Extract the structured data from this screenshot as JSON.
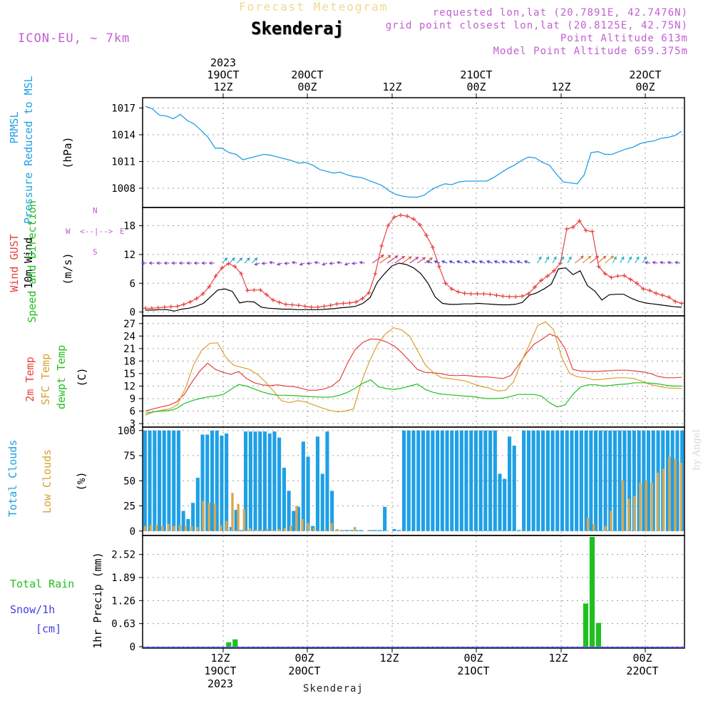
{
  "header": {
    "top_title": "Forecast Meteogram",
    "location": "Skenderaj",
    "model": "ICON-EU, ~ 7km",
    "requested": "requested lon,lat (20.7891E, 42.7476N)",
    "gridpoint": "grid point closest lon,lat (20.8125E, 42.75N)",
    "point_alt": "Point Altitude 613m",
    "model_alt": "Model Point Altitude 659.375m",
    "credit": "by Angel",
    "footer": "Skenderaj"
  },
  "colors": {
    "pressure": "#1ea0e6",
    "gust": "#e84040",
    "wind": "#000000",
    "t2m": "#e84040",
    "sfc": "#d8a030",
    "dew": "#20c020",
    "total_clouds": "#1ea0e6",
    "low_clouds": "#d8a850",
    "rain": "#20c020",
    "snow": "#4040e0",
    "purple": "#c060d0"
  },
  "top_axis": [
    {
      "lines": [
        "2023",
        "19OCT",
        "12Z"
      ]
    },
    {
      "lines": [
        "20OCT",
        "00Z"
      ]
    },
    {
      "lines": [
        "12Z"
      ]
    },
    {
      "lines": [
        "21OCT",
        "00Z"
      ]
    },
    {
      "lines": [
        "12Z"
      ]
    },
    {
      "lines": [
        "22OCT",
        "00Z"
      ]
    }
  ],
  "bottom_axis": [
    {
      "lines": [
        "12Z",
        "19OCT",
        "2023"
      ]
    },
    {
      "lines": [
        "00Z",
        "20OCT"
      ]
    },
    {
      "lines": [
        "12Z"
      ]
    },
    {
      "lines": [
        "00Z",
        "21OCT"
      ]
    },
    {
      "lines": [
        "12Z"
      ]
    },
    {
      "lines": [
        "00Z",
        "22OCT"
      ]
    }
  ],
  "labels": {
    "prmsl": "PRMSL",
    "prmsl2": "Pressure Reduced to MSL",
    "hpa": "(hPa)",
    "gust": "Wind GUST",
    "wind10": "10m Wind",
    "winddir": "Speed and Direction",
    "ms": "(m/s)",
    "compass": "N\n<-|->",
    "t2m": "2m Temp",
    "sfc": "SFC Temp",
    "dew": "dewpt Temp",
    "degc": "(C)",
    "tcc": "Total Clouds",
    "lcc": "Low Clouds",
    "pct": "(%)",
    "rain": "Total  Rain",
    "snow": "Snow/1h",
    "cm": "[cm]",
    "precip": "1hr Precip (mm)",
    "compass_n": "N",
    "compass_s": "S",
    "compass_w": "W",
    "compass_e": "E"
  },
  "chart_data": [
    {
      "type": "line",
      "name": "pressure",
      "ylim": [
        1006,
        1018
      ],
      "yticks": [
        1008,
        1011,
        1014,
        1017
      ],
      "tick_labels": [
        "1008",
        "1011",
        "1014",
        "1017"
      ],
      "series": [
        {
          "name": "PRMSL",
          "values": [
            1017.2,
            1016.9,
            1016.2,
            1016.1,
            1015.8,
            1016.3,
            1015.6,
            1015.2,
            1014.5,
            1013.7,
            1012.5,
            1012.5,
            1012.0,
            1011.8,
            1011.2,
            1011.4,
            1011.6,
            1011.8,
            1011.7,
            1011.5,
            1011.3,
            1011.1,
            1010.8,
            1010.9,
            1010.6,
            1010.1,
            1009.9,
            1009.7,
            1009.8,
            1009.5,
            1009.3,
            1009.2,
            1008.9,
            1008.6,
            1008.3,
            1007.7,
            1007.3,
            1007.1,
            1007.0,
            1007.0,
            1007.2,
            1007.8,
            1008.2,
            1008.5,
            1008.4,
            1008.7,
            1008.8,
            1008.8,
            1008.8,
            1008.8,
            1009.2,
            1009.7,
            1010.2,
            1010.6,
            1011.1,
            1011.5,
            1011.4,
            1010.9,
            1010.6,
            1009.6,
            1008.7,
            1008.6,
            1008.5,
            1009.5,
            1012.0,
            1012.1,
            1011.8,
            1011.8,
            1012.1,
            1012.4,
            1012.6,
            1013.0,
            1013.2,
            1013.3,
            1013.6,
            1013.7,
            1013.9,
            1014.4
          ]
        }
      ]
    },
    {
      "type": "line",
      "name": "wind",
      "ylim": [
        -0.5,
        21.5
      ],
      "yticks": [
        0,
        6,
        12,
        18
      ],
      "tick_labels": [
        "0",
        "6",
        "12",
        "18"
      ],
      "series": [
        {
          "name": "Wind GUST",
          "values": [
            0.8,
            0.8,
            0.9,
            1.0,
            1.1,
            1.2,
            1.6,
            2.1,
            2.8,
            3.8,
            5.3,
            7.5,
            9.2,
            10.1,
            9.5,
            8.0,
            4.5,
            4.6,
            4.6,
            3.6,
            2.5,
            2.0,
            1.6,
            1.5,
            1.4,
            1.2,
            1.0,
            1.0,
            1.2,
            1.4,
            1.7,
            1.8,
            1.9,
            2.1,
            2.8,
            4.0,
            8.0,
            13.8,
            18.0,
            19.8,
            20.2,
            20.0,
            19.4,
            18.2,
            16.0,
            13.5,
            9.5,
            6.0,
            4.8,
            4.2,
            3.9,
            3.8,
            3.8,
            3.8,
            3.7,
            3.5,
            3.3,
            3.2,
            3.2,
            3.3,
            3.8,
            5.2,
            6.6,
            7.5,
            8.6,
            10.2,
            17.3,
            17.7,
            19.0,
            17.0,
            16.8,
            9.5,
            8.0,
            7.2,
            7.5,
            7.6,
            6.8,
            6.0,
            4.8,
            4.5,
            3.9,
            3.5,
            3.1,
            2.2,
            1.8
          ]
        },
        {
          "name": "10m Wind",
          "values": [
            0.4,
            0.4,
            0.5,
            0.5,
            0.2,
            0.6,
            0.8,
            1.2,
            1.8,
            3.2,
            4.6,
            4.8,
            4.3,
            1.9,
            2.2,
            2.1,
            1.0,
            0.8,
            0.7,
            0.6,
            0.6,
            0.5,
            0.5,
            0.5,
            0.5,
            0.6,
            0.7,
            0.9,
            1.0,
            1.2,
            1.8,
            3.0,
            6.2,
            8.0,
            9.6,
            10.2,
            9.9,
            9.2,
            8.0,
            6.0,
            3.1,
            1.8,
            1.6,
            1.6,
            1.7,
            1.7,
            1.8,
            1.7,
            1.6,
            1.5,
            1.5,
            1.6,
            2.0,
            3.5,
            4.0,
            4.8,
            5.8,
            9.0,
            9.2,
            7.8,
            8.6,
            5.5,
            4.4,
            2.5,
            3.6,
            3.7,
            3.7,
            2.9,
            2.3,
            1.9,
            1.7,
            1.5,
            1.3,
            1.1,
            1.0
          ]
        }
      ]
    },
    {
      "type": "line",
      "name": "temperature",
      "ylim": [
        2.5,
        28.5
      ],
      "yticks": [
        3,
        6,
        9,
        12,
        15,
        18,
        21,
        24,
        27
      ],
      "tick_labels": [
        "3",
        "6",
        "9",
        "12",
        "15",
        "18",
        "21",
        "24",
        "27"
      ],
      "series": [
        {
          "name": "2m Temp",
          "values": [
            6.0,
            6.5,
            7.0,
            7.4,
            8.2,
            10.0,
            13.0,
            15.6,
            17.5,
            16.0,
            15.3,
            14.8,
            15.5,
            13.8,
            12.8,
            12.3,
            12.1,
            12.3,
            12.0,
            11.9,
            11.5,
            11.0,
            11.0,
            11.3,
            12.0,
            13.5,
            17.5,
            20.8,
            22.5,
            23.3,
            23.2,
            22.6,
            21.6,
            20.0,
            18.0,
            16.0,
            15.3,
            15.2,
            15.0,
            14.6,
            14.5,
            14.6,
            14.4,
            14.2,
            14.2,
            14.0,
            13.8,
            14.5,
            17.0,
            19.8,
            22.0,
            23.2,
            24.5,
            23.8,
            21.0,
            16.0,
            15.6,
            15.5,
            15.5,
            15.6,
            15.7,
            15.8,
            15.8,
            15.6,
            15.4,
            15.0,
            14.3,
            14.0,
            14.0,
            14.1
          ]
        },
        {
          "name": "SFC Temp",
          "values": [
            5.0,
            5.8,
            6.2,
            6.5,
            7.5,
            11.5,
            17.0,
            20.5,
            22.2,
            22.4,
            19.0,
            17.0,
            16.5,
            16.0,
            14.8,
            13.0,
            10.8,
            8.5,
            8.0,
            8.5,
            8.2,
            7.5,
            6.8,
            6.2,
            5.8,
            6.0,
            6.5,
            13.0,
            18.0,
            22.0,
            24.5,
            26.0,
            25.5,
            24.0,
            20.5,
            17.0,
            15.2,
            14.0,
            13.8,
            13.5,
            13.2,
            12.5,
            11.9,
            11.5,
            10.8,
            11.0,
            13.0,
            18.0,
            22.0,
            26.5,
            27.4,
            25.5,
            19.0,
            15.0,
            14.2,
            14.0,
            13.5,
            13.6,
            13.8,
            14.0,
            14.0,
            13.8,
            13.2,
            12.4,
            12.0,
            11.6,
            11.5,
            11.4
          ]
        },
        {
          "name": "dewpt Temp",
          "values": [
            5.5,
            5.8,
            6.0,
            6.1,
            6.6,
            7.8,
            8.5,
            9.0,
            9.4,
            9.6,
            10.0,
            11.2,
            12.4,
            12.0,
            11.3,
            10.6,
            10.1,
            9.8,
            9.8,
            9.7,
            9.6,
            9.5,
            9.4,
            9.3,
            9.4,
            9.8,
            10.5,
            11.5,
            12.7,
            13.5,
            11.8,
            11.4,
            11.2,
            11.5,
            12.0,
            12.5,
            11.2,
            10.5,
            10.1,
            9.9,
            9.8,
            9.6,
            9.5,
            9.2,
            9.0,
            9.0,
            9.1,
            9.5,
            10.0,
            10.0,
            10.0,
            9.6,
            8.0,
            7.0,
            7.5,
            10.0,
            11.8,
            12.3,
            12.3,
            12.0,
            12.2,
            12.4,
            12.5,
            12.8,
            12.8,
            12.7,
            12.5,
            12.2,
            12.0,
            12.0
          ]
        }
      ]
    },
    {
      "type": "bar",
      "name": "clouds",
      "ylim": [
        -3,
        102
      ],
      "yticks": [
        0,
        25,
        50,
        75,
        100
      ],
      "tick_labels": [
        "0",
        "25",
        "50",
        "75",
        "100"
      ],
      "series": [
        {
          "name": "Total Clouds",
          "values": [
            100,
            100,
            100,
            100,
            100,
            100,
            100,
            100,
            20,
            12,
            28,
            53,
            96,
            96,
            100,
            100,
            95,
            97,
            4,
            21,
            1,
            99,
            99,
            99,
            99,
            99,
            97,
            99,
            93,
            63,
            40,
            20,
            24,
            89,
            74,
            5,
            94,
            57,
            99,
            40,
            1,
            1,
            1,
            1,
            1,
            1,
            0,
            1,
            1,
            1,
            24,
            0,
            2,
            1,
            100,
            100,
            100,
            100,
            100,
            100,
            100,
            100,
            100,
            100,
            100,
            100,
            100,
            100,
            100,
            100,
            100,
            100,
            100,
            100,
            57,
            52,
            94,
            85,
            1,
            100,
            100,
            100,
            100,
            100,
            100,
            100,
            100,
            100,
            100,
            100,
            100,
            100,
            100,
            100,
            100,
            100,
            100,
            100,
            100,
            100,
            100,
            100,
            100,
            100,
            100,
            100,
            100,
            100,
            100,
            100,
            100,
            100,
            100
          ]
        },
        {
          "name": "Low Clouds",
          "values": [
            5,
            6,
            6,
            5,
            7,
            5,
            6,
            5,
            5,
            4,
            30,
            28,
            27,
            6,
            10,
            38,
            27,
            22,
            3,
            1,
            1,
            2,
            1,
            2,
            3,
            5,
            25,
            12,
            8,
            3,
            1,
            1,
            8,
            2,
            1,
            1,
            4,
            0,
            0,
            1,
            0,
            0,
            0,
            0,
            0,
            0,
            0,
            0,
            0,
            0,
            0,
            0,
            0,
            0,
            0,
            0,
            0,
            0,
            0,
            0,
            0,
            0,
            0,
            0,
            0,
            0,
            0,
            0,
            0,
            0,
            0,
            0,
            0,
            0,
            0,
            0,
            13,
            7,
            0,
            5,
            20,
            0,
            50,
            32,
            35,
            48,
            51,
            48,
            58,
            62,
            74,
            72,
            68
          ]
        }
      ]
    },
    {
      "type": "bar",
      "name": "precip",
      "ylim": [
        0,
        3.0
      ],
      "yticks": [
        0,
        0.63,
        1.26,
        1.89,
        2.52
      ],
      "tick_labels": [
        "0",
        "0.63",
        "1.26",
        "1.89",
        "2.52"
      ],
      "series": [
        {
          "name": "Total Rain",
          "values": [
            {
              "i": 13,
              "v": 0.12
            },
            {
              "i": 14,
              "v": 0.2
            },
            {
              "i": 69,
              "v": 1.18
            },
            {
              "i": 70,
              "v": 3.0
            },
            {
              "i": 71,
              "v": 0.65
            }
          ]
        }
      ]
    }
  ]
}
